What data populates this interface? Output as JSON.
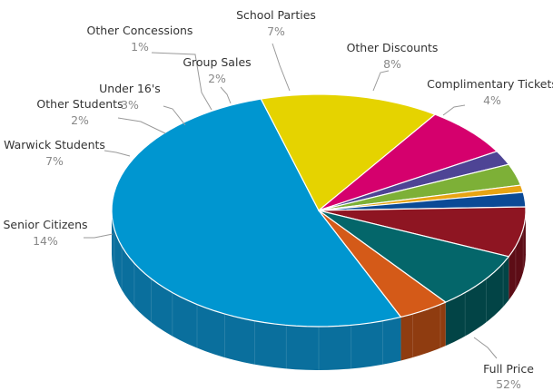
{
  "chart_data": {
    "type": "pie",
    "title": "",
    "slices": [
      {
        "label": "Full Price",
        "value": 52,
        "value_label": "52%",
        "color": "#0096d0",
        "side": "#0a6f9d"
      },
      {
        "label": "Senior Citizens",
        "value": 14,
        "value_label": "14%",
        "color": "#e5d300",
        "side": "#a59800"
      },
      {
        "label": "Warwick Students",
        "value": 7,
        "value_label": "7%",
        "color": "#d5006d",
        "side": "#8d0048"
      },
      {
        "label": "Other Students",
        "value": 2,
        "value_label": "2%",
        "color": "#4e4495",
        "side": "#342c66"
      },
      {
        "label": "Under 16's",
        "value": 3,
        "value_label": "3%",
        "color": "#7db037",
        "side": "#557824"
      },
      {
        "label": "Other Concessions",
        "value": 1,
        "value_label": "1%",
        "color": "#e8a414",
        "side": "#a1710d"
      },
      {
        "label": "Group Sales",
        "value": 2,
        "value_label": "2%",
        "color": "#0b4a96",
        "side": "#073063"
      },
      {
        "label": "School Parties",
        "value": 7,
        "value_label": "7%",
        "color": "#8e1522",
        "side": "#5d0d16"
      },
      {
        "label": "Other Discounts",
        "value": 8,
        "value_label": "8%",
        "color": "#04666a",
        "side": "#024446"
      },
      {
        "label": "Complimentary Tickets",
        "value": 4,
        "value_label": "4%",
        "color": "#d45a18",
        "side": "#8f3c10"
      }
    ]
  }
}
